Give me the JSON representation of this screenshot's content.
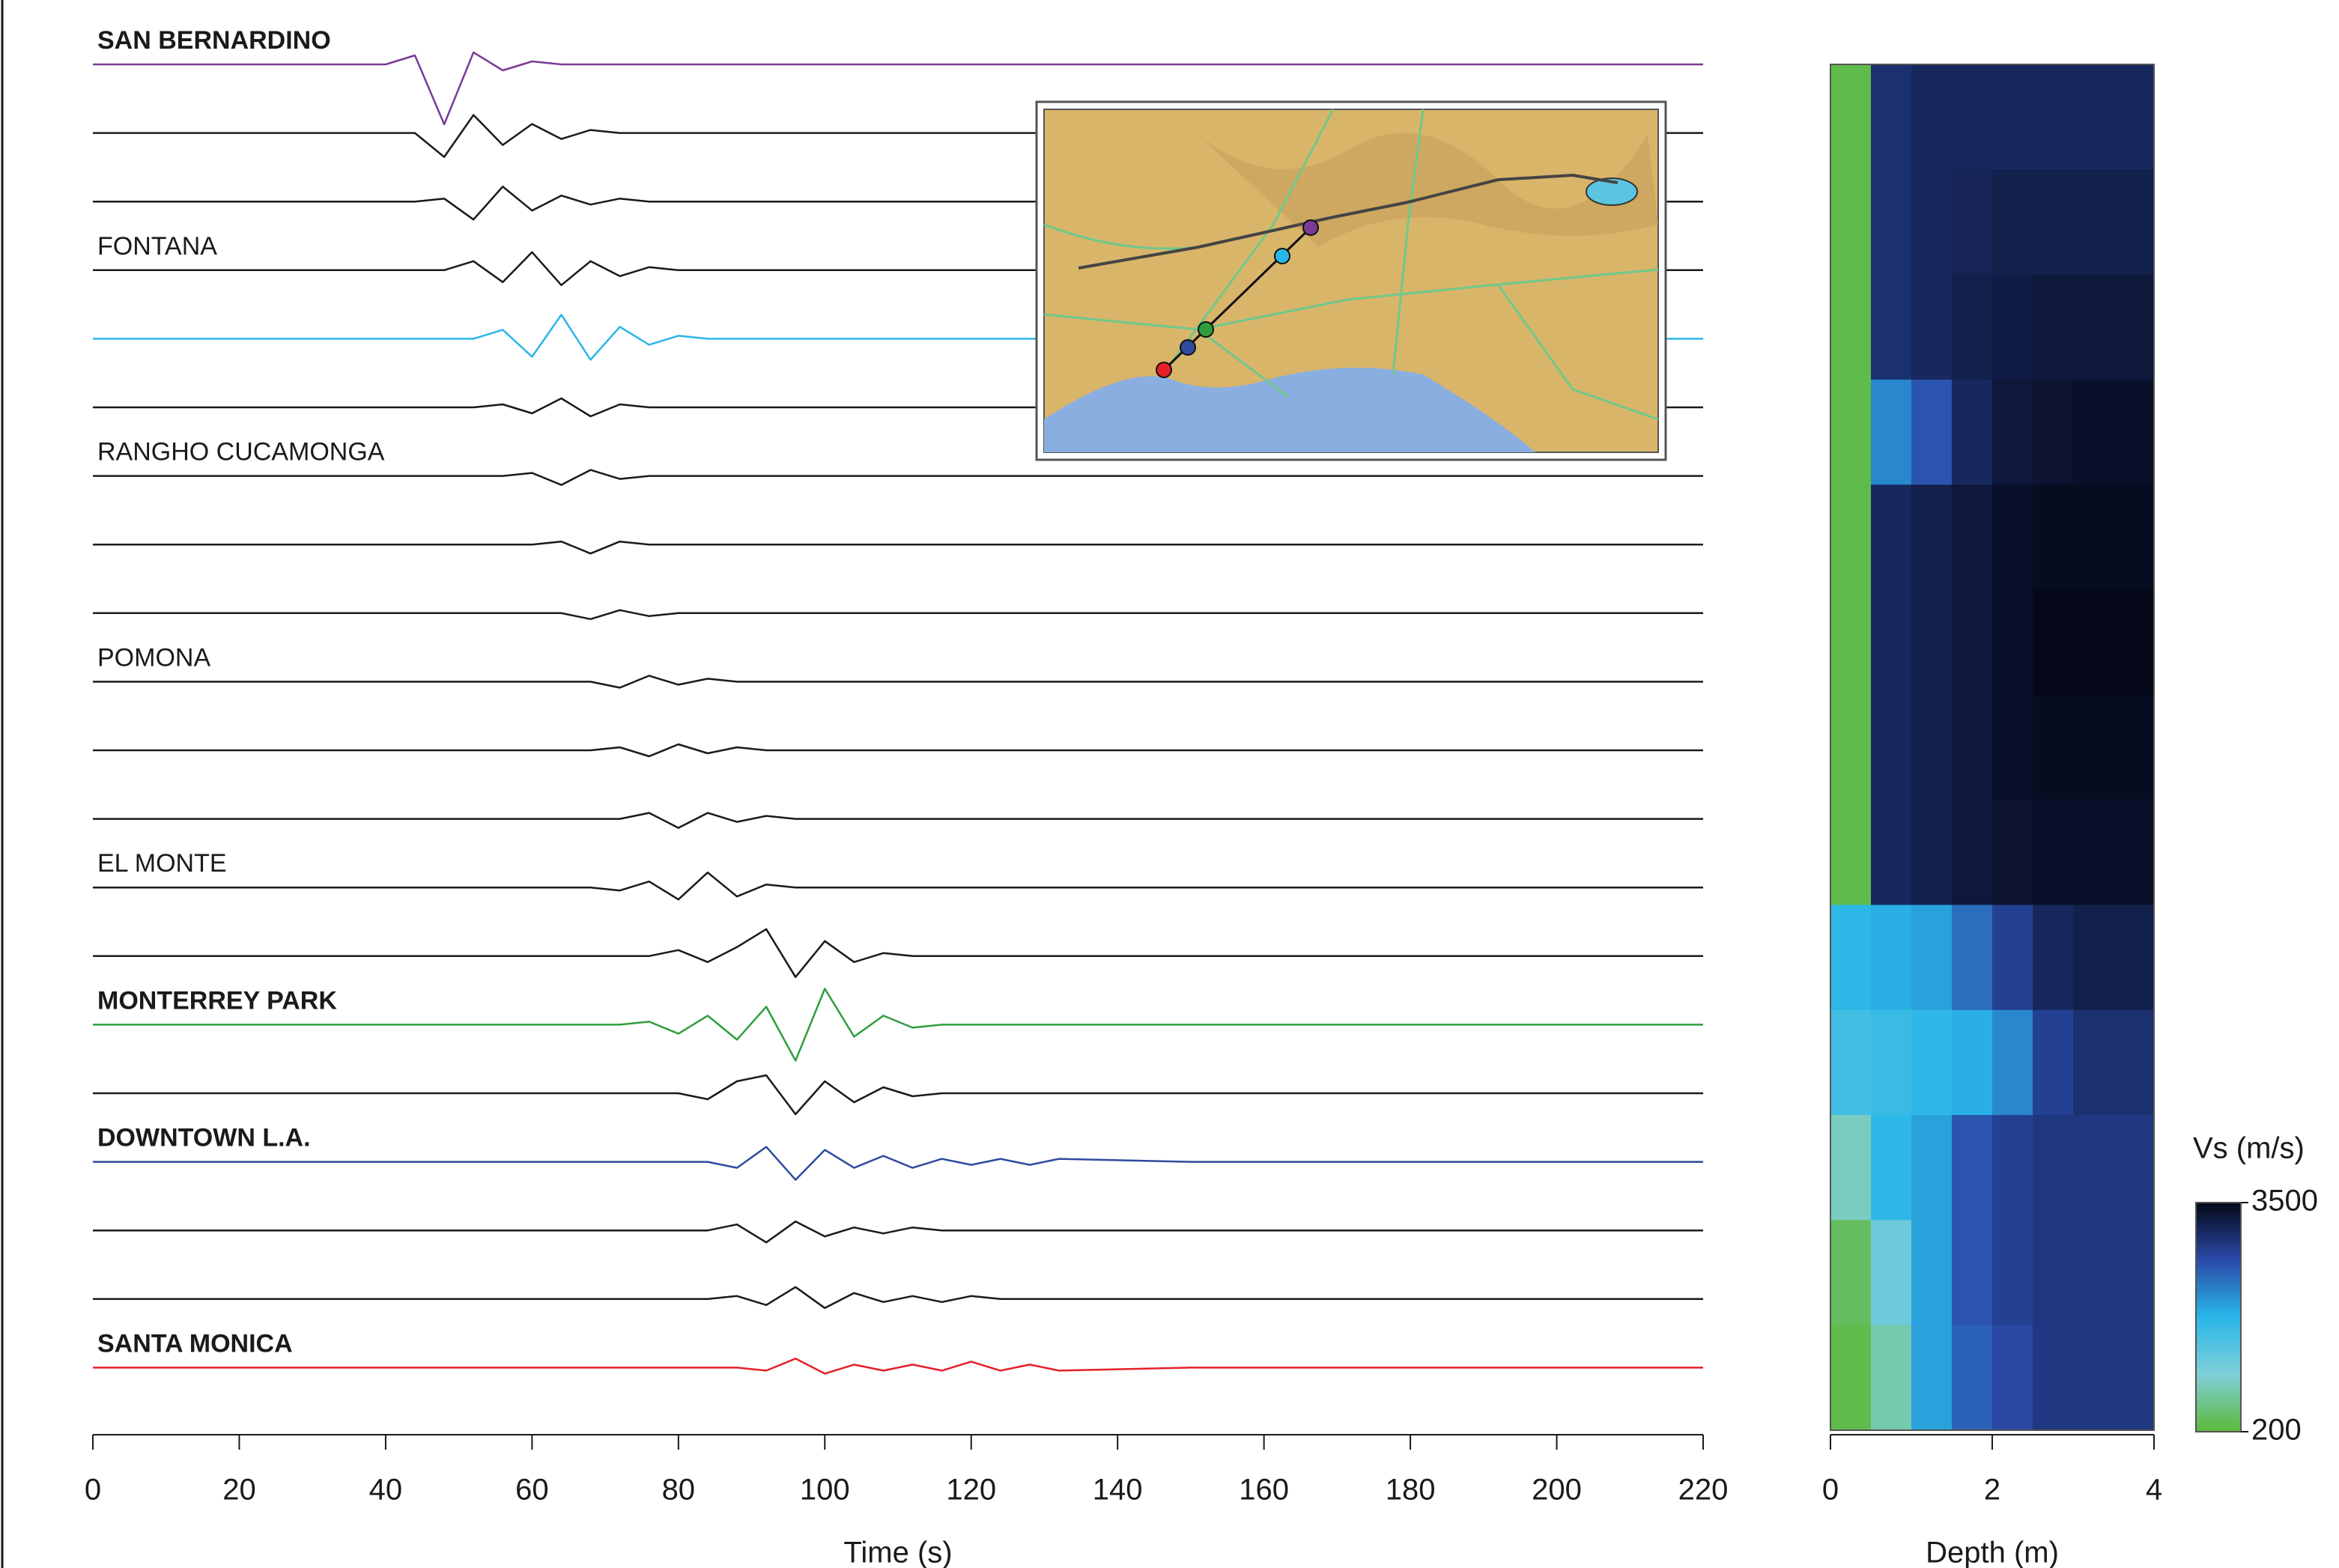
{
  "chart_data": [
    {
      "type": "line",
      "xlabel": "Time (s)",
      "xlim": [
        0,
        220
      ],
      "xticks": [
        0,
        20,
        40,
        60,
        80,
        100,
        120,
        140,
        160,
        180,
        200,
        220
      ],
      "x": [
        0,
        40,
        44,
        48,
        52,
        56,
        60,
        64,
        68,
        72,
        76,
        80,
        84,
        88,
        92,
        96,
        100,
        104,
        108,
        112,
        116,
        120,
        124,
        128,
        132,
        150,
        220
      ],
      "series": [
        {
          "name": "SAN BERNARDINO",
          "color": "#7a3a96",
          "values": [
            0,
            0,
            3,
            -20,
            4,
            -2,
            1,
            0,
            0,
            0,
            0,
            0,
            0,
            0,
            0,
            0,
            0,
            0,
            0,
            0,
            0,
            0,
            0,
            0,
            0,
            0,
            0
          ]
        },
        {
          "name": null,
          "color": "#1a1a1a",
          "values": [
            0,
            0,
            0,
            -8,
            6,
            -4,
            3,
            -2,
            1,
            0,
            0,
            0,
            0,
            0,
            0,
            0,
            0,
            0,
            0,
            0,
            0,
            0,
            0,
            0,
            0,
            0,
            0
          ]
        },
        {
          "name": null,
          "color": "#1a1a1a",
          "values": [
            0,
            0,
            0,
            1,
            -6,
            5,
            -3,
            2,
            -1,
            1,
            0,
            0,
            0,
            0,
            0,
            0,
            0,
            0,
            0,
            0,
            0,
            0,
            0,
            0,
            0,
            0,
            0
          ]
        },
        {
          "name": "FONTANA",
          "color": "#1a1a1a",
          "values": [
            0,
            0,
            0,
            0,
            3,
            -4,
            6,
            -5,
            3,
            -2,
            1,
            0,
            0,
            0,
            0,
            0,
            0,
            0,
            0,
            0,
            0,
            0,
            0,
            0,
            0,
            0,
            0
          ]
        },
        {
          "name": null,
          "color": "#29b6e8",
          "values": [
            0,
            0,
            0,
            0,
            0,
            3,
            -6,
            8,
            -7,
            4,
            -2,
            1,
            0,
            0,
            0,
            0,
            0,
            0,
            0,
            0,
            0,
            0,
            0,
            0,
            0,
            0,
            0
          ]
        },
        {
          "name": null,
          "color": "#1a1a1a",
          "values": [
            0,
            0,
            0,
            0,
            0,
            1,
            -2,
            3,
            -3,
            1,
            0,
            0,
            0,
            0,
            0,
            0,
            0,
            0,
            0,
            0,
            0,
            0,
            0,
            0,
            0,
            0,
            0
          ]
        },
        {
          "name": "RANGHO CUCAMONGA",
          "color": "#1a1a1a",
          "values": [
            0,
            0,
            0,
            0,
            0,
            0,
            1,
            -3,
            2,
            -1,
            0,
            0,
            0,
            0,
            0,
            0,
            0,
            0,
            0,
            0,
            0,
            0,
            0,
            0,
            0,
            0,
            0
          ]
        },
        {
          "name": null,
          "color": "#1a1a1a",
          "values": [
            0,
            0,
            0,
            0,
            0,
            0,
            0,
            1,
            -3,
            1,
            0,
            0,
            0,
            0,
            0,
            0,
            0,
            0,
            0,
            0,
            0,
            0,
            0,
            0,
            0,
            0,
            0
          ]
        },
        {
          "name": null,
          "color": "#1a1a1a",
          "values": [
            0,
            0,
            0,
            0,
            0,
            0,
            0,
            0,
            -2,
            1,
            -1,
            0,
            0,
            0,
            0,
            0,
            0,
            0,
            0,
            0,
            0,
            0,
            0,
            0,
            0,
            0,
            0
          ]
        },
        {
          "name": "POMONA",
          "color": "#1a1a1a",
          "values": [
            0,
            0,
            0,
            0,
            0,
            0,
            0,
            0,
            0,
            -2,
            2,
            -1,
            1,
            0,
            0,
            0,
            0,
            0,
            0,
            0,
            0,
            0,
            0,
            0,
            0,
            0,
            0
          ]
        },
        {
          "name": null,
          "color": "#1a1a1a",
          "values": [
            0,
            0,
            0,
            0,
            0,
            0,
            0,
            0,
            0,
            1,
            -2,
            2,
            -1,
            1,
            0,
            0,
            0,
            0,
            0,
            0,
            0,
            0,
            0,
            0,
            0,
            0,
            0
          ]
        },
        {
          "name": null,
          "color": "#1a1a1a",
          "values": [
            0,
            0,
            0,
            0,
            0,
            0,
            0,
            0,
            0,
            0,
            2,
            -3,
            2,
            -1,
            1,
            0,
            0,
            0,
            0,
            0,
            0,
            0,
            0,
            0,
            0,
            0,
            0
          ]
        },
        {
          "name": "EL MONTE",
          "color": "#1a1a1a",
          "values": [
            0,
            0,
            0,
            0,
            0,
            0,
            0,
            0,
            0,
            -1,
            2,
            -4,
            5,
            -3,
            1,
            0,
            0,
            0,
            0,
            0,
            0,
            0,
            0,
            0,
            0,
            0,
            0
          ]
        },
        {
          "name": null,
          "color": "#1a1a1a",
          "values": [
            0,
            0,
            0,
            0,
            0,
            0,
            0,
            0,
            0,
            0,
            0,
            2,
            -2,
            3,
            9,
            -7,
            5,
            -2,
            1,
            0,
            0,
            0,
            0,
            0,
            0,
            0,
            0
          ]
        },
        {
          "name": "MONTERREY PARK",
          "color": "#2e9e3e",
          "values": [
            0,
            0,
            0,
            0,
            0,
            0,
            0,
            0,
            0,
            0,
            1,
            -3,
            3,
            -5,
            6,
            -12,
            12,
            -4,
            3,
            -1,
            0,
            0,
            0,
            0,
            0,
            0,
            0
          ]
        },
        {
          "name": null,
          "color": "#1a1a1a",
          "values": [
            0,
            0,
            0,
            0,
            0,
            0,
            0,
            0,
            0,
            0,
            0,
            0,
            -2,
            4,
            6,
            -7,
            4,
            -3,
            2,
            -1,
            0,
            0,
            0,
            0,
            0,
            0,
            0
          ]
        },
        {
          "name": "DOWNTOWN L.A.",
          "color": "#2e4b9e",
          "values": [
            0,
            0,
            0,
            0,
            0,
            0,
            0,
            0,
            0,
            0,
            0,
            0,
            0,
            -2,
            5,
            -6,
            4,
            -2,
            2,
            -2,
            1,
            -1,
            1,
            -1,
            1,
            0,
            0
          ]
        },
        {
          "name": null,
          "color": "#1a1a1a",
          "values": [
            0,
            0,
            0,
            0,
            0,
            0,
            0,
            0,
            0,
            0,
            0,
            0,
            0,
            2,
            -4,
            3,
            -2,
            1,
            -1,
            1,
            0,
            0,
            0,
            0,
            0,
            0,
            0
          ]
        },
        {
          "name": null,
          "color": "#1a1a1a",
          "values": [
            0,
            0,
            0,
            0,
            0,
            0,
            0,
            0,
            0,
            0,
            0,
            0,
            0,
            1,
            -2,
            4,
            -3,
            2,
            -1,
            1,
            -1,
            1,
            0,
            0,
            0,
            0,
            0
          ]
        },
        {
          "name": "SANTA MONICA",
          "color": "#e5202a",
          "values": [
            0,
            0,
            0,
            0,
            0,
            0,
            0,
            0,
            0,
            0,
            0,
            0,
            0,
            0,
            -1,
            3,
            -2,
            1,
            -1,
            1,
            -1,
            2,
            -1,
            1,
            -1,
            0,
            0
          ]
        }
      ]
    },
    {
      "type": "heatmap",
      "xlabel": "Depth (m)",
      "xlim": [
        0,
        4
      ],
      "xticks": [
        0,
        2,
        4
      ],
      "colors": [
        "#5cb83a",
        "#7fd0d8",
        "#29b6e8",
        "#2a4aa8",
        "#050818"
      ],
      "colorbar": {
        "label": "Vs (m/s)",
        "lim": [
          200,
          3500
        ],
        "ticks": [
          200,
          3500
        ]
      },
      "values": [
        [
          300,
          3000,
          3100,
          3100,
          3100,
          3100,
          3100,
          3100
        ],
        [
          300,
          3000,
          3100,
          3150,
          3200,
          3200,
          3200,
          3200
        ],
        [
          300,
          3000,
          3100,
          3200,
          3250,
          3300,
          3300,
          3300
        ],
        [
          300,
          2200,
          2600,
          3100,
          3300,
          3350,
          3400,
          3400
        ],
        [
          300,
          3100,
          3200,
          3300,
          3400,
          3450,
          3450,
          3450
        ],
        [
          300,
          3100,
          3200,
          3300,
          3400,
          3500,
          3500,
          3500
        ],
        [
          300,
          3100,
          3200,
          3300,
          3400,
          3450,
          3450,
          3450
        ],
        [
          300,
          3100,
          3200,
          3300,
          3350,
          3400,
          3400,
          3400
        ],
        [
          1800,
          1900,
          2000,
          2400,
          2800,
          3100,
          3200,
          3200
        ],
        [
          1600,
          1700,
          1800,
          1900,
          2200,
          2800,
          3000,
          3000
        ],
        [
          900,
          1800,
          2000,
          2600,
          2800,
          2900,
          2900,
          2900
        ],
        [
          400,
          1200,
          2000,
          2600,
          2800,
          2900,
          2900,
          2900
        ],
        [
          300,
          800,
          2000,
          2500,
          2700,
          2900,
          2900,
          2900
        ]
      ]
    }
  ]
}
